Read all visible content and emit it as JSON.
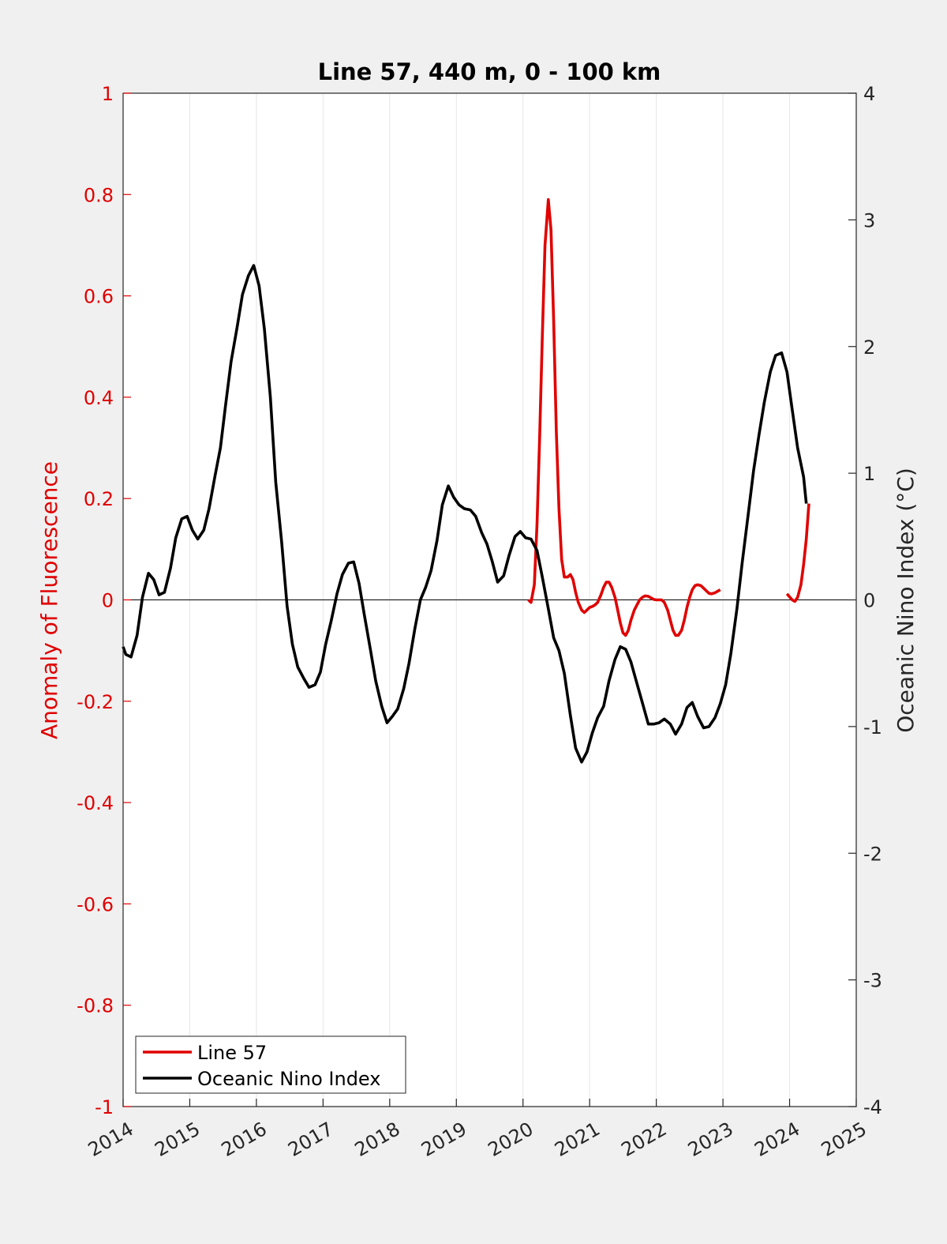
{
  "chart_data": {
    "type": "line",
    "title": "Line 57, 440 m, 0 - 100 km",
    "ylabel_left": "Anomaly of Fluorescence",
    "ylabel_right": "Oceanic Nino Index (°C)",
    "xlim": [
      2014,
      2025
    ],
    "ylim_left": [
      -1,
      1
    ],
    "ylim_right": [
      -4,
      4
    ],
    "x_ticks": [
      "2014",
      "2015",
      "2016",
      "2017",
      "2018",
      "2019",
      "2020",
      "2021",
      "2022",
      "2023",
      "2024",
      "2025"
    ],
    "left_ticks": [
      "1",
      "0.8",
      "0.6",
      "0.4",
      "0.2",
      "0",
      "-0.2",
      "-0.4",
      "-0.6",
      "-0.8",
      "-1"
    ],
    "right_ticks": [
      "4",
      "3",
      "2",
      "1",
      "0",
      "-1",
      "-2",
      "-3",
      "-4"
    ],
    "grid": "vertical",
    "legend_placement": "bottom-left",
    "colors": {
      "line57": "#e00000",
      "oni": "#000000",
      "left_axis": "#e00000"
    },
    "series": [
      {
        "name": "Line 57",
        "axis": "left",
        "segments": [
          [
            [
              2020.08,
              0.0
            ],
            [
              2020.12,
              -0.005
            ],
            [
              2020.17,
              0.03
            ],
            [
              2020.21,
              0.15
            ],
            [
              2020.25,
              0.32
            ],
            [
              2020.29,
              0.52
            ],
            [
              2020.33,
              0.7
            ],
            [
              2020.38,
              0.79
            ],
            [
              2020.42,
              0.73
            ],
            [
              2020.46,
              0.55
            ],
            [
              2020.5,
              0.33
            ],
            [
              2020.54,
              0.18
            ],
            [
              2020.58,
              0.08
            ],
            [
              2020.62,
              0.045
            ],
            [
              2020.67,
              0.045
            ],
            [
              2020.71,
              0.05
            ],
            [
              2020.75,
              0.04
            ],
            [
              2020.79,
              0.015
            ],
            [
              2020.83,
              -0.005
            ],
            [
              2020.88,
              -0.02
            ],
            [
              2020.92,
              -0.025
            ],
            [
              2020.96,
              -0.02
            ],
            [
              2021.0,
              -0.015
            ],
            [
              2021.04,
              -0.013
            ],
            [
              2021.08,
              -0.01
            ],
            [
              2021.12,
              -0.005
            ],
            [
              2021.17,
              0.01
            ],
            [
              2021.21,
              0.025
            ],
            [
              2021.25,
              0.035
            ],
            [
              2021.29,
              0.035
            ],
            [
              2021.33,
              0.025
            ],
            [
              2021.38,
              0.005
            ],
            [
              2021.42,
              -0.02
            ],
            [
              2021.46,
              -0.045
            ],
            [
              2021.5,
              -0.065
            ],
            [
              2021.54,
              -0.07
            ],
            [
              2021.58,
              -0.06
            ],
            [
              2021.62,
              -0.04
            ],
            [
              2021.67,
              -0.02
            ],
            [
              2021.71,
              -0.01
            ],
            [
              2021.75,
              0.0
            ],
            [
              2021.79,
              0.005
            ],
            [
              2021.83,
              0.008
            ],
            [
              2021.88,
              0.007
            ],
            [
              2021.92,
              0.004
            ],
            [
              2021.96,
              0.001
            ],
            [
              2022.0,
              0.0
            ],
            [
              2022.04,
              0.0
            ],
            [
              2022.08,
              0.0
            ],
            [
              2022.12,
              -0.005
            ],
            [
              2022.17,
              -0.02
            ],
            [
              2022.21,
              -0.04
            ],
            [
              2022.25,
              -0.06
            ],
            [
              2022.29,
              -0.07
            ],
            [
              2022.33,
              -0.07
            ],
            [
              2022.38,
              -0.06
            ],
            [
              2022.42,
              -0.04
            ],
            [
              2022.46,
              -0.015
            ],
            [
              2022.5,
              0.005
            ],
            [
              2022.54,
              0.02
            ],
            [
              2022.58,
              0.028
            ],
            [
              2022.62,
              0.03
            ],
            [
              2022.67,
              0.028
            ],
            [
              2022.71,
              0.023
            ],
            [
              2022.75,
              0.018
            ],
            [
              2022.79,
              0.013
            ],
            [
              2022.83,
              0.012
            ],
            [
              2022.88,
              0.014
            ],
            [
              2022.92,
              0.017
            ],
            [
              2022.96,
              0.02
            ]
          ],
          [
            [
              2023.96,
              0.012
            ],
            [
              2024.0,
              0.006
            ],
            [
              2024.04,
              0.0
            ],
            [
              2024.08,
              -0.003
            ],
            [
              2024.12,
              0.005
            ],
            [
              2024.17,
              0.03
            ],
            [
              2024.21,
              0.07
            ],
            [
              2024.25,
              0.12
            ],
            [
              2024.29,
              0.19
            ]
          ]
        ]
      },
      {
        "name": "Oceanic Nino Index",
        "axis": "right",
        "segments": [
          [
            [
              2014.0,
              -0.37
            ],
            [
              2014.04,
              -0.43
            ],
            [
              2014.12,
              -0.45
            ],
            [
              2014.21,
              -0.28
            ],
            [
              2014.29,
              0.02
            ],
            [
              2014.38,
              0.21
            ],
            [
              2014.46,
              0.16
            ],
            [
              2014.54,
              0.04
            ],
            [
              2014.62,
              0.06
            ],
            [
              2014.71,
              0.25
            ],
            [
              2014.79,
              0.49
            ],
            [
              2014.88,
              0.64
            ],
            [
              2014.96,
              0.66
            ],
            [
              2015.04,
              0.55
            ],
            [
              2015.12,
              0.48
            ],
            [
              2015.21,
              0.55
            ],
            [
              2015.29,
              0.72
            ],
            [
              2015.38,
              0.98
            ],
            [
              2015.46,
              1.2
            ],
            [
              2015.54,
              1.55
            ],
            [
              2015.62,
              1.88
            ],
            [
              2015.71,
              2.15
            ],
            [
              2015.79,
              2.41
            ],
            [
              2015.88,
              2.56
            ],
            [
              2015.96,
              2.64
            ],
            [
              2016.04,
              2.48
            ],
            [
              2016.12,
              2.14
            ],
            [
              2016.21,
              1.6
            ],
            [
              2016.29,
              0.93
            ],
            [
              2016.38,
              0.45
            ],
            [
              2016.46,
              -0.05
            ],
            [
              2016.54,
              -0.35
            ],
            [
              2016.62,
              -0.53
            ],
            [
              2016.71,
              -0.62
            ],
            [
              2016.79,
              -0.69
            ],
            [
              2016.88,
              -0.67
            ],
            [
              2016.96,
              -0.57
            ],
            [
              2017.04,
              -0.35
            ],
            [
              2017.12,
              -0.17
            ],
            [
              2017.21,
              0.05
            ],
            [
              2017.29,
              0.2
            ],
            [
              2017.38,
              0.29
            ],
            [
              2017.46,
              0.3
            ],
            [
              2017.54,
              0.13
            ],
            [
              2017.62,
              -0.12
            ],
            [
              2017.71,
              -0.39
            ],
            [
              2017.79,
              -0.64
            ],
            [
              2017.88,
              -0.84
            ],
            [
              2017.96,
              -0.97
            ],
            [
              2018.04,
              -0.92
            ],
            [
              2018.12,
              -0.86
            ],
            [
              2018.21,
              -0.7
            ],
            [
              2018.29,
              -0.5
            ],
            [
              2018.38,
              -0.22
            ],
            [
              2018.46,
              0.0
            ],
            [
              2018.54,
              0.1
            ],
            [
              2018.62,
              0.23
            ],
            [
              2018.71,
              0.47
            ],
            [
              2018.79,
              0.75
            ],
            [
              2018.88,
              0.9
            ],
            [
              2018.96,
              0.81
            ],
            [
              2019.04,
              0.75
            ],
            [
              2019.12,
              0.72
            ],
            [
              2019.21,
              0.71
            ],
            [
              2019.29,
              0.66
            ],
            [
              2019.38,
              0.53
            ],
            [
              2019.46,
              0.44
            ],
            [
              2019.54,
              0.3
            ],
            [
              2019.62,
              0.14
            ],
            [
              2019.71,
              0.19
            ],
            [
              2019.79,
              0.35
            ],
            [
              2019.88,
              0.5
            ],
            [
              2019.96,
              0.54
            ],
            [
              2020.04,
              0.49
            ],
            [
              2020.12,
              0.48
            ],
            [
              2020.21,
              0.39
            ],
            [
              2020.29,
              0.18
            ],
            [
              2020.38,
              -0.07
            ],
            [
              2020.46,
              -0.3
            ],
            [
              2020.54,
              -0.4
            ],
            [
              2020.62,
              -0.58
            ],
            [
              2020.71,
              -0.91
            ],
            [
              2020.79,
              -1.17
            ],
            [
              2020.88,
              -1.28
            ],
            [
              2020.96,
              -1.2
            ],
            [
              2021.04,
              -1.05
            ],
            [
              2021.12,
              -0.93
            ],
            [
              2021.21,
              -0.84
            ],
            [
              2021.29,
              -0.64
            ],
            [
              2021.38,
              -0.47
            ],
            [
              2021.46,
              -0.37
            ],
            [
              2021.54,
              -0.39
            ],
            [
              2021.62,
              -0.49
            ],
            [
              2021.71,
              -0.66
            ],
            [
              2021.79,
              -0.81
            ],
            [
              2021.88,
              -0.98
            ],
            [
              2021.96,
              -0.98
            ],
            [
              2022.04,
              -0.97
            ],
            [
              2022.12,
              -0.94
            ],
            [
              2022.21,
              -0.98
            ],
            [
              2022.29,
              -1.06
            ],
            [
              2022.38,
              -0.98
            ],
            [
              2022.46,
              -0.85
            ],
            [
              2022.54,
              -0.81
            ],
            [
              2022.62,
              -0.92
            ],
            [
              2022.71,
              -1.01
            ],
            [
              2022.79,
              -1.0
            ],
            [
              2022.88,
              -0.93
            ],
            [
              2022.96,
              -0.82
            ],
            [
              2023.04,
              -0.67
            ],
            [
              2023.12,
              -0.42
            ],
            [
              2023.21,
              -0.07
            ],
            [
              2023.29,
              0.3
            ],
            [
              2023.38,
              0.68
            ],
            [
              2023.46,
              1.02
            ],
            [
              2023.54,
              1.3
            ],
            [
              2023.62,
              1.56
            ],
            [
              2023.71,
              1.8
            ],
            [
              2023.79,
              1.93
            ],
            [
              2023.88,
              1.95
            ],
            [
              2023.96,
              1.8
            ],
            [
              2024.04,
              1.5
            ],
            [
              2024.12,
              1.2
            ],
            [
              2024.21,
              0.97
            ],
            [
              2024.25,
              0.76
            ]
          ]
        ]
      }
    ]
  }
}
